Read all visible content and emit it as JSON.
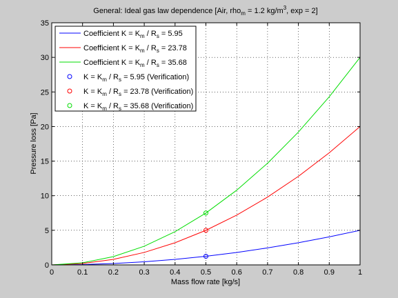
{
  "window_bg": "#cccccc",
  "chart_data": {
    "type": "line",
    "title": "General: Ideal gas law dependence [Air, rho",
    "title_sub": "m",
    "title_mid": " = 1.2 kg/m",
    "title_sup": "3",
    "title_end": ", exp = 2]",
    "xlabel": "Mass flow rate [kg/s]",
    "ylabel": "Pressure loss [Pa]",
    "xlim": [
      0,
      1
    ],
    "ylim": [
      0,
      35
    ],
    "xticks": [
      "0",
      "0.1",
      "0.2",
      "0.3",
      "0.4",
      "0.5",
      "0.6",
      "0.7",
      "0.8",
      "0.9",
      "1"
    ],
    "yticks": [
      "0",
      "5",
      "10",
      "15",
      "20",
      "25",
      "30",
      "35"
    ],
    "grid": true,
    "legend_position": "top-left",
    "series": [
      {
        "kind": "line",
        "color": "#0000ff",
        "coef": 5.95,
        "legend": {
          "a": "Coefficient K = K",
          "sub1": "m",
          "b": " / R",
          "sub2": "s",
          "c": " =  5.95"
        },
        "x": [
          0,
          0.1,
          0.2,
          0.3,
          0.4,
          0.5,
          0.6,
          0.7,
          0.8,
          0.9,
          1.0
        ],
        "y": [
          0,
          0.05,
          0.2,
          0.45,
          0.8,
          1.25,
          1.8,
          2.45,
          3.2,
          4.05,
          5.0
        ]
      },
      {
        "kind": "line",
        "color": "#ff0000",
        "coef": 23.78,
        "legend": {
          "a": "Coefficient K = K",
          "sub1": "m",
          "b": " / R",
          "sub2": "s",
          "c": " = 23.78"
        },
        "x": [
          0,
          0.1,
          0.2,
          0.3,
          0.4,
          0.5,
          0.6,
          0.7,
          0.8,
          0.9,
          1.0
        ],
        "y": [
          0,
          0.2,
          0.8,
          1.8,
          3.2,
          5.0,
          7.2,
          9.8,
          12.8,
          16.2,
          20.0
        ]
      },
      {
        "kind": "line",
        "color": "#00dd00",
        "coef": 35.68,
        "legend": {
          "a": "Coefficient K = K",
          "sub1": "m",
          "b": " / R",
          "sub2": "s",
          "c": " = 35.68"
        },
        "x": [
          0,
          0.1,
          0.2,
          0.3,
          0.4,
          0.5,
          0.6,
          0.7,
          0.8,
          0.9,
          1.0
        ],
        "y": [
          0,
          0.3,
          1.2,
          2.7,
          4.8,
          7.5,
          10.8,
          14.7,
          19.2,
          24.3,
          30.0
        ]
      },
      {
        "kind": "marker",
        "color": "#0000ff",
        "legend": {
          "a": "K = K",
          "sub1": "m",
          "b": " / R",
          "sub2": "s",
          "c": " =  5.95 (Verification)"
        },
        "x": [
          0.5
        ],
        "y": [
          1.25
        ]
      },
      {
        "kind": "marker",
        "color": "#ff0000",
        "legend": {
          "a": "K = K",
          "sub1": "m",
          "b": " / R",
          "sub2": "s",
          "c": " = 23.78 (Verification)"
        },
        "x": [
          0.5
        ],
        "y": [
          5.0
        ]
      },
      {
        "kind": "marker",
        "color": "#00dd00",
        "legend": {
          "a": "K = K",
          "sub1": "m",
          "b": " / R",
          "sub2": "s",
          "c": " = 35.68 (Verification)"
        },
        "x": [
          0.5
        ],
        "y": [
          7.5
        ]
      }
    ]
  }
}
